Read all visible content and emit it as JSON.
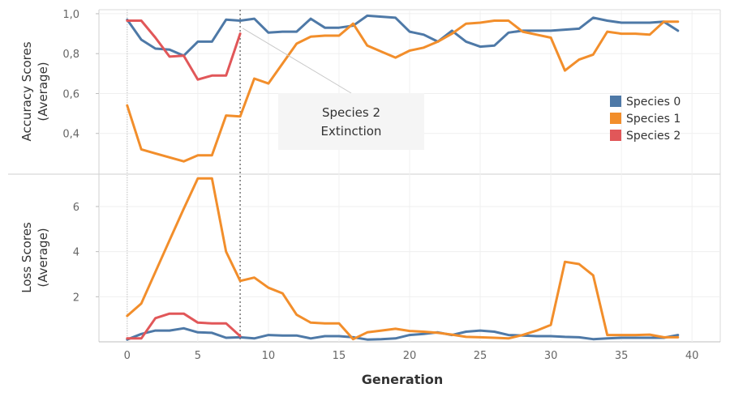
{
  "chart_data": {
    "type": "line",
    "xlabel": "Generation",
    "xlim": [
      -2,
      42
    ],
    "x_ticks": [
      0,
      5,
      10,
      15,
      20,
      25,
      30,
      35,
      40
    ],
    "x_tick_labels": [
      "0",
      "5",
      "10",
      "15",
      "20",
      "25",
      "30",
      "35",
      "40"
    ],
    "extinction_generation": 8,
    "annotation": {
      "lines": [
        "Species 2",
        "Extinction"
      ],
      "anchor_x": 8,
      "anchor_y": 0.96
    },
    "legend": [
      {
        "name": "Species 0",
        "color": "#4e79a7"
      },
      {
        "name": "Species 1",
        "color": "#f28e2b"
      },
      {
        "name": "Species 2",
        "color": "#e15759"
      }
    ],
    "panels": [
      {
        "ylabel_lines": [
          "Accuracy Scores",
          "(Average)"
        ],
        "ylim": [
          0.2,
          1.02
        ],
        "y_ticks": [
          0.4,
          0.6,
          0.8,
          1.0
        ],
        "y_tick_labels": [
          "0,4",
          "0,6",
          "0,8",
          "1,0"
        ],
        "series": [
          {
            "name": "Species 0",
            "color": "#4e79a7",
            "x": [
              0,
              1,
              2,
              3,
              4,
              5,
              6,
              7,
              8,
              9,
              10,
              11,
              12,
              13,
              14,
              15,
              16,
              17,
              18,
              19,
              20,
              21,
              22,
              23,
              24,
              25,
              26,
              27,
              28,
              29,
              30,
              31,
              32,
              33,
              34,
              35,
              36,
              37,
              38,
              39
            ],
            "values": [
              0.97,
              0.87,
              0.825,
              0.82,
              0.79,
              0.86,
              0.86,
              0.97,
              0.965,
              0.975,
              0.905,
              0.91,
              0.91,
              0.975,
              0.93,
              0.93,
              0.94,
              0.99,
              0.985,
              0.98,
              0.91,
              0.895,
              0.86,
              0.915,
              0.86,
              0.835,
              0.84,
              0.905,
              0.915,
              0.915,
              0.915,
              0.92,
              0.925,
              0.98,
              0.965,
              0.955,
              0.955,
              0.955,
              0.96,
              0.915
            ]
          },
          {
            "name": "Species 1",
            "color": "#f28e2b",
            "x": [
              0,
              1,
              2,
              3,
              4,
              5,
              6,
              7,
              8,
              9,
              10,
              11,
              12,
              13,
              14,
              15,
              16,
              17,
              18,
              19,
              20,
              21,
              22,
              23,
              24,
              25,
              26,
              27,
              28,
              29,
              30,
              31,
              32,
              33,
              34,
              35,
              36,
              37,
              38,
              39
            ],
            "values": [
              0.54,
              0.32,
              0.3,
              0.28,
              0.26,
              0.29,
              0.29,
              0.49,
              0.485,
              0.675,
              0.65,
              0.75,
              0.85,
              0.885,
              0.89,
              0.89,
              0.95,
              0.84,
              0.81,
              0.78,
              0.815,
              0.83,
              0.86,
              0.9,
              0.95,
              0.955,
              0.965,
              0.965,
              0.91,
              0.895,
              0.88,
              0.715,
              0.77,
              0.795,
              0.91,
              0.9,
              0.9,
              0.895,
              0.96,
              0.96
            ]
          },
          {
            "name": "Species 2",
            "color": "#e15759",
            "x": [
              0,
              1,
              2,
              3,
              4,
              5,
              6,
              7,
              8
            ],
            "values": [
              0.965,
              0.965,
              0.88,
              0.785,
              0.79,
              0.67,
              0.69,
              0.69,
              0.9
            ]
          }
        ]
      },
      {
        "ylabel_lines": [
          "Loss Scores",
          "(Average)"
        ],
        "ylim": [
          0,
          7.4
        ],
        "y_ticks": [
          2,
          4,
          6
        ],
        "y_tick_labels": [
          "2",
          "4",
          "6"
        ],
        "series": [
          {
            "name": "Species 0",
            "color": "#4e79a7",
            "x": [
              0,
              1,
              2,
              3,
              4,
              5,
              6,
              7,
              8,
              9,
              10,
              11,
              12,
              13,
              14,
              15,
              16,
              17,
              18,
              19,
              20,
              21,
              22,
              23,
              24,
              25,
              26,
              27,
              28,
              29,
              30,
              31,
              32,
              33,
              34,
              35,
              36,
              37,
              38,
              39
            ],
            "values": [
              0.1,
              0.35,
              0.5,
              0.5,
              0.6,
              0.42,
              0.4,
              0.18,
              0.2,
              0.15,
              0.3,
              0.28,
              0.28,
              0.15,
              0.25,
              0.25,
              0.2,
              0.1,
              0.12,
              0.15,
              0.3,
              0.35,
              0.42,
              0.3,
              0.45,
              0.5,
              0.45,
              0.3,
              0.28,
              0.25,
              0.25,
              0.22,
              0.2,
              0.12,
              0.15,
              0.18,
              0.18,
              0.18,
              0.18,
              0.3
            ]
          },
          {
            "name": "Species 1",
            "color": "#f28e2b",
            "x": [
              0,
              1,
              2,
              3,
              4,
              5,
              6,
              7,
              8,
              9,
              10,
              11,
              12,
              13,
              14,
              15,
              16,
              17,
              18,
              19,
              20,
              21,
              22,
              23,
              24,
              25,
              26,
              27,
              28,
              29,
              30,
              31,
              32,
              33,
              34,
              35,
              36,
              37,
              38,
              39
            ],
            "values": [
              1.15,
              1.7,
              3.1,
              4.5,
              5.9,
              7.25,
              7.25,
              4.0,
              2.7,
              2.85,
              2.4,
              2.15,
              1.2,
              0.85,
              0.82,
              0.82,
              0.12,
              0.42,
              0.5,
              0.58,
              0.48,
              0.45,
              0.4,
              0.32,
              0.22,
              0.2,
              0.18,
              0.15,
              0.3,
              0.5,
              0.75,
              3.55,
              3.45,
              2.95,
              0.3,
              0.3,
              0.3,
              0.32,
              0.2,
              0.2
            ]
          },
          {
            "name": "Species 2",
            "color": "#e15759",
            "x": [
              0,
              1,
              2,
              3,
              4,
              5,
              6,
              7,
              8
            ],
            "values": [
              0.15,
              0.15,
              1.05,
              1.25,
              1.25,
              0.85,
              0.82,
              0.82,
              0.25
            ]
          }
        ]
      }
    ]
  }
}
